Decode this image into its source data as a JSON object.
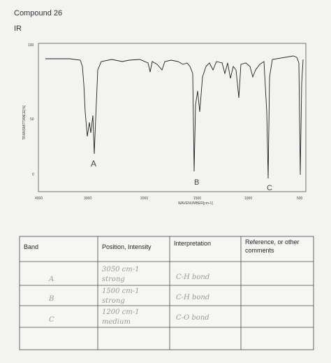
{
  "header": {
    "title": "Compound 26",
    "subtitle": "IR"
  },
  "spectrum": {
    "y_label": "TRANSMITTANCE[%]",
    "x_label": "WAVENUMBER[cm-1]",
    "yticks": [
      "100",
      "50",
      "0"
    ],
    "xticks": [
      "4000",
      "3000",
      "2000",
      "1500",
      "1000",
      "500"
    ],
    "peaks": [
      "A",
      "B",
      "C"
    ]
  },
  "table": {
    "header": [
      "Band",
      "Position, Intensity",
      "Interpretation",
      "Reference, or other"
    ],
    "header_line2": "comments",
    "rows": [
      [
        "A",
        "3050 cm-1",
        "strong",
        "C-H bond"
      ],
      [
        "B",
        "1500 cm-1",
        "strong",
        "C-H bond"
      ],
      [
        "C",
        "1200 cm-1",
        "medium",
        "C-O bond"
      ]
    ]
  }
}
